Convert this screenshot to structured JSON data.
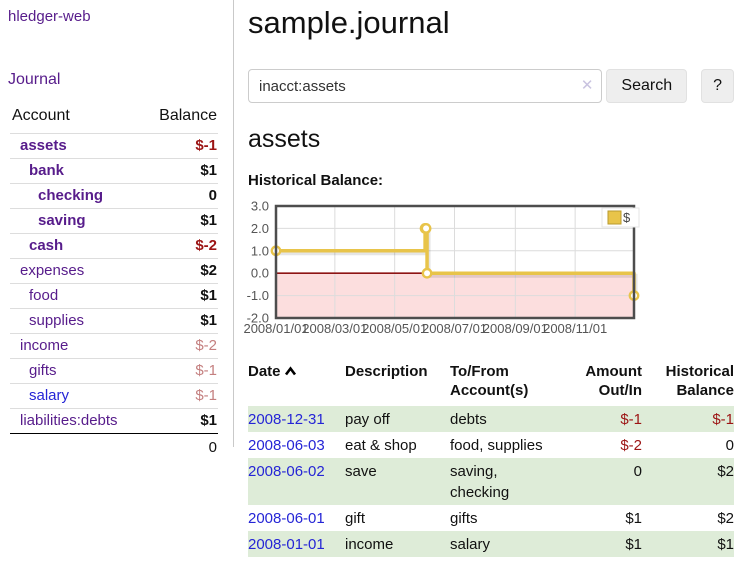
{
  "app": {
    "title": "hledger-web",
    "nav_journal": "Journal"
  },
  "sidebar": {
    "header": {
      "account": "Account",
      "balance": "Balance"
    },
    "accounts": [
      {
        "name": "assets",
        "balance": "$-1",
        "level": 1,
        "bold": true,
        "name_color": "purple",
        "balance_color": "red"
      },
      {
        "name": "bank",
        "balance": "$1",
        "level": 2,
        "bold": true,
        "name_color": "purple",
        "balance_color": "black"
      },
      {
        "name": "checking",
        "balance": "0",
        "level": 3,
        "bold": true,
        "name_color": "purple",
        "balance_color": "black"
      },
      {
        "name": "saving",
        "balance": "$1",
        "level": 3,
        "bold": true,
        "name_color": "purple",
        "balance_color": "black"
      },
      {
        "name": "cash",
        "balance": "$-2",
        "level": 2,
        "bold": true,
        "name_color": "purple",
        "balance_color": "red"
      },
      {
        "name": "expenses",
        "balance": "$2",
        "level": 1,
        "bold": false,
        "name_color": "purple",
        "balance_color": "black"
      },
      {
        "name": "food",
        "balance": "$1",
        "level": 2,
        "bold": false,
        "name_color": "purple",
        "balance_color": "black"
      },
      {
        "name": "supplies",
        "balance": "$1",
        "level": 2,
        "bold": false,
        "name_color": "purple",
        "balance_color": "black"
      },
      {
        "name": "income",
        "balance": "$-2",
        "level": 1,
        "bold": false,
        "name_color": "purple",
        "balance_color": "softred"
      },
      {
        "name": "gifts",
        "balance": "$-1",
        "level": 2,
        "bold": false,
        "name_color": "purple",
        "balance_color": "softred"
      },
      {
        "name": "salary",
        "balance": "$-1",
        "level": 2,
        "bold": false,
        "name_color": "blue",
        "balance_color": "softred"
      },
      {
        "name": "liabilities:debts",
        "balance": "$1",
        "level": 1,
        "bold": false,
        "name_color": "purple",
        "balance_color": "black"
      }
    ],
    "total": "0"
  },
  "main": {
    "title": "sample.journal",
    "search": {
      "value": "inacct:assets",
      "clear_glyph": "✕",
      "button_label": "Search",
      "help_label": "?"
    },
    "account_heading": "assets",
    "chart_label": "Historical Balance:"
  },
  "chart_data": {
    "type": "line",
    "step": true,
    "title": "Historical Balance:",
    "series": [
      {
        "name": "$",
        "points": [
          [
            "2008-01-01",
            1
          ],
          [
            "2008-06-01",
            2
          ],
          [
            "2008-06-02",
            2
          ],
          [
            "2008-06-03",
            0
          ],
          [
            "2008-12-31",
            -1
          ]
        ]
      }
    ],
    "xlim": [
      "2008-01-01",
      "2008-12-31"
    ],
    "ylim": [
      -2,
      3
    ],
    "y_ticks": [
      3.0,
      2.0,
      1.0,
      0.0,
      -1.0,
      -2.0
    ],
    "x_ticks": [
      "2008/01/01",
      "2008/03/01",
      "2008/05/01",
      "2008/07/01",
      "2008/09/01",
      "2008/11/01"
    ],
    "grid": true,
    "legend": {
      "label": "$",
      "position": "top-right"
    },
    "line_color": "#e8c44a",
    "negative_region_fill": "#fcdede",
    "zero_line_color": "#8e1414"
  },
  "register": {
    "headers": [
      "Date",
      "Description",
      "To/From Account(s)",
      "Amount Out/In",
      "Historical Balance"
    ],
    "rows": [
      {
        "date": "2008-12-31",
        "description": "pay off",
        "accounts": "debts",
        "amount": "$-1",
        "balance": "$-1"
      },
      {
        "date": "2008-06-03",
        "description": "eat & shop",
        "accounts": "food, supplies",
        "amount": "$-2",
        "balance": "0"
      },
      {
        "date": "2008-06-02",
        "description": "save",
        "accounts": "saving, checking",
        "amount": "0",
        "balance": "$2"
      },
      {
        "date": "2008-06-01",
        "description": "gift",
        "accounts": "gifts",
        "amount": "$1",
        "balance": "$2"
      },
      {
        "date": "2008-01-01",
        "description": "income",
        "accounts": "salary",
        "amount": "$1",
        "balance": "$1"
      }
    ]
  },
  "colors": {
    "accent_purple": "#571c8b",
    "link_blue": "#2525d6",
    "negative_red": "#9c1414",
    "muted_red": "#c47f7f",
    "row_green": "#deecd8",
    "chart_gold": "#e8c44a",
    "chart_pink": "#fcdede",
    "chart_zero_red": "#8e1414"
  }
}
